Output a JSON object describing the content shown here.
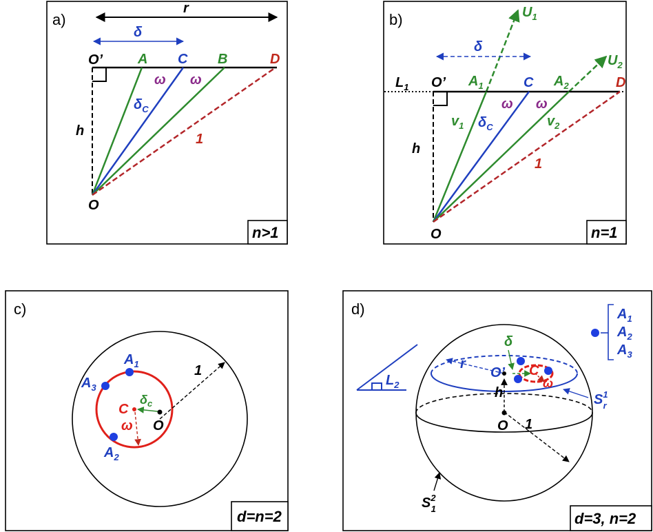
{
  "colors": {
    "black": "#000000",
    "green": "#2e8b2e",
    "blue": "#1f3fbf",
    "red": "#c0281c",
    "darkred": "#b3262a",
    "purple": "#8a2a8a",
    "point_blue": "#1f3fe0"
  },
  "panel_a": {
    "tag": "a)",
    "r": "r",
    "delta": "δ",
    "O_prime": "O’",
    "A": "A",
    "C": "C",
    "B": "B",
    "D": "D",
    "omega1": "ω",
    "omega2": "ω",
    "delta_c": "δ",
    "delta_c_sub": "C",
    "h": "h",
    "one": "1",
    "O": "O",
    "condition": "n>1"
  },
  "panel_b": {
    "tag": "b)",
    "U1": "U",
    "U1_sub": "1",
    "U2": "U",
    "U2_sub": "2",
    "delta": "δ",
    "L1": "L",
    "L1_sub": "1",
    "O_prime": "O’",
    "A1": "A",
    "A1_sub": "1",
    "C": "C",
    "A2": "A",
    "A2_sub": "2",
    "D": "D",
    "omega1": "ω",
    "omega2": "ω",
    "v1": "v",
    "v1_sub": "1",
    "delta_c": "δ",
    "delta_c_sub": "C",
    "v2": "v",
    "v2_sub": "2",
    "h": "h",
    "one": "1",
    "O": "O",
    "condition": "n=1"
  },
  "panel_c": {
    "tag": "c)",
    "A1": "A",
    "A1_sub": "1",
    "A3": "A",
    "A3_sub": "3",
    "A2": "A",
    "A2_sub": "2",
    "C": "C",
    "delta_c": "δ",
    "delta_c_sub": "c",
    "O": "O",
    "omega": "ω",
    "one": "1",
    "condition": "d=n=2"
  },
  "panel_d": {
    "tag": "d)",
    "legend": [
      {
        "base": "A",
        "sub": "1"
      },
      {
        "base": "A",
        "sub": "2"
      },
      {
        "base": "A",
        "sub": "3"
      }
    ],
    "L2": "L",
    "L2_sub": "2",
    "delta": "δ",
    "r": "r",
    "O_prime": "O’",
    "C": "C",
    "omega": "ω",
    "h": "h",
    "O": "O",
    "one": "1",
    "S_r": "S",
    "S_r_sub": "r",
    "S_r_sup": "1",
    "S_1": "S",
    "S_1_sub": "1",
    "S_1_sup": "2",
    "condition": "d=3, n=2"
  }
}
